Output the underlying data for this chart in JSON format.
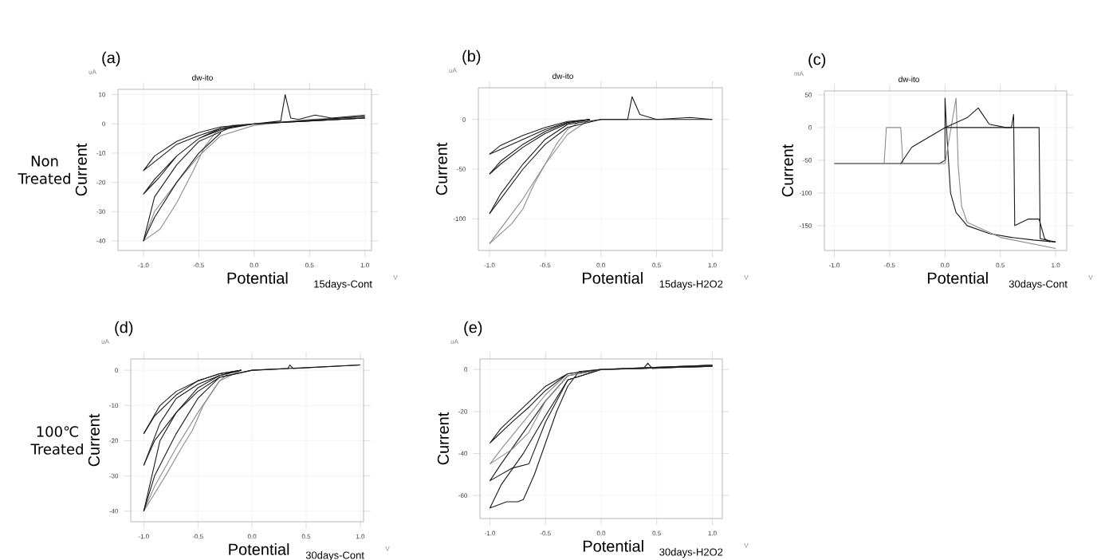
{
  "chart_data": [
    {
      "type": "line",
      "title": "(a)",
      "subtitle": "dw-ito",
      "xlabel": "Potential",
      "ylabel": "Current",
      "annotations": [
        "uA",
        "V",
        "15days-Cont",
        "Non Treated"
      ],
      "grid": true,
      "xlim": [
        -1.23,
        1.06
      ],
      "ylim": [
        -43.3,
        11.8
      ],
      "xticks": [
        {
          "value": -1,
          "label": "-1.0"
        },
        {
          "value": -0.5,
          "label": "-0.5"
        },
        {
          "value": 0,
          "label": "0.0"
        },
        {
          "value": 0.5,
          "label": "0.5"
        },
        {
          "value": 1,
          "label": "1.0"
        }
      ],
      "yticks": [
        10,
        0,
        -10,
        -20,
        -30,
        -40
      ],
      "series": [
        {
          "color": "#8c8c8c",
          "x": [
            1.0,
            0.5,
            0.0,
            -0.2,
            -0.35,
            -0.45,
            -0.55,
            -0.7,
            -0.85,
            -1.0,
            -0.9,
            -0.7,
            -0.5,
            -0.3,
            0.0,
            0.5,
            1.0
          ],
          "values": [
            2,
            1,
            0,
            -0.5,
            -3,
            -8,
            -16,
            -27,
            -36,
            -40,
            -30,
            -20,
            -11,
            -4,
            -0.5,
            1.5,
            2.5
          ]
        },
        {
          "color": "#1a1a1a",
          "x": [
            1.0,
            0.5,
            0.0,
            -0.3,
            -0.5,
            -0.7,
            -0.85,
            -1.0,
            -0.9,
            -0.7,
            -0.5,
            -0.3,
            0.0,
            0.24,
            0.28,
            0.33,
            0.4,
            0.55,
            0.7,
            1.0
          ],
          "values": [
            2,
            1,
            0,
            -1.5,
            -5,
            -11,
            -18,
            -24,
            -19,
            -11,
            -5,
            -2,
            0,
            1,
            10,
            2,
            1.5,
            3,
            2,
            3
          ]
        },
        {
          "color": "#1a1a1a",
          "x": [
            1.0,
            0.0,
            -0.3,
            -0.5,
            -0.7,
            -0.9,
            -1.0,
            -0.9,
            -0.7,
            -0.5,
            -0.3,
            0.0,
            1.0
          ],
          "values": [
            2,
            0,
            -1,
            -3,
            -6,
            -11,
            -16,
            -13,
            -7,
            -4,
            -1.5,
            0,
            2.5
          ]
        },
        {
          "color": "#1a1a1a",
          "x": [
            -0.2,
            -0.5,
            -0.7,
            -0.9,
            -1.0,
            -0.9,
            -0.7,
            -0.5,
            -0.3
          ],
          "values": [
            -1,
            -6,
            -14,
            -25,
            -40,
            -32,
            -20,
            -10,
            -3
          ]
        }
      ]
    },
    {
      "type": "line",
      "title": "(b)",
      "subtitle": "dw-ito",
      "xlabel": "Potential",
      "ylabel": "Current",
      "annotations": [
        "uA",
        "V",
        "15days-H2O2"
      ],
      "grid": true,
      "xlim": [
        -1.1,
        1.09
      ],
      "ylim": [
        -132,
        32
      ],
      "xticks": [
        {
          "value": -1,
          "label": "-1.0"
        },
        {
          "value": -0.5,
          "label": "-0.5"
        },
        {
          "value": 0,
          "label": "0.0"
        },
        {
          "value": 0.5,
          "label": "0.5"
        },
        {
          "value": 1,
          "label": "1.0"
        }
      ],
      "yticks": [
        0,
        -50,
        -100
      ],
      "series": [
        {
          "color": "#8c8c8c",
          "x": [
            -0.1,
            -0.2,
            -0.3,
            -0.4,
            -0.5,
            -0.6,
            -0.7,
            -0.8,
            -0.9,
            -1.0
          ],
          "values": [
            0,
            -3,
            -10,
            -25,
            -45,
            -65,
            -90,
            -105,
            -115,
            -125
          ]
        },
        {
          "color": "#8c8c8c",
          "x": [
            -1.0,
            -0.9,
            -0.7,
            -0.5,
            -0.3,
            -0.1
          ],
          "values": [
            -125,
            -110,
            -80,
            -45,
            -15,
            0
          ]
        },
        {
          "color": "#1a1a1a",
          "x": [
            1.0,
            0.8,
            0.5,
            0.0,
            -0.3,
            -0.5,
            -0.7,
            -0.9,
            -1.0
          ],
          "values": [
            0,
            2,
            0,
            0,
            -5,
            -20,
            -45,
            -75,
            -95
          ]
        },
        {
          "color": "#1a1a1a",
          "x": [
            -1.0,
            -0.9,
            -0.7,
            -0.5,
            -0.3,
            0.0,
            0.24,
            0.28,
            0.35,
            0.5,
            1.0
          ],
          "values": [
            -95,
            -80,
            -50,
            -25,
            -8,
            0,
            0,
            23,
            5,
            0,
            0
          ]
        },
        {
          "color": "#1a1a1a",
          "x": [
            -0.1,
            -0.3,
            -0.5,
            -0.7,
            -0.9,
            -1.0
          ],
          "values": [
            0,
            -3,
            -12,
            -25,
            -42,
            -55
          ]
        },
        {
          "color": "#1a1a1a",
          "x": [
            -1.0,
            -0.9,
            -0.7,
            -0.5,
            -0.3,
            -0.1
          ],
          "values": [
            -55,
            -45,
            -28,
            -14,
            -4,
            0
          ]
        },
        {
          "color": "#1a1a1a",
          "x": [
            -0.1,
            -0.3,
            -0.5,
            -0.7,
            -0.9,
            -1.0
          ],
          "values": [
            0,
            -2,
            -8,
            -16,
            -26,
            -35
          ]
        },
        {
          "color": "#1a1a1a",
          "x": [
            -1.0,
            -0.9,
            -0.7,
            -0.5,
            -0.3,
            -0.1
          ],
          "values": [
            -35,
            -30,
            -20,
            -10,
            -3,
            0
          ]
        }
      ]
    },
    {
      "type": "line",
      "title": "(c)",
      "subtitle": "dw-ito",
      "xlabel": "Potential",
      "ylabel": "Current",
      "annotations": [
        "mA",
        "V",
        "30days-Cont"
      ],
      "grid": true,
      "xlim": [
        -1.09,
        1.1
      ],
      "ylim": [
        -188,
        56
      ],
      "xticks": [
        {
          "value": -1,
          "label": "-1.0"
        },
        {
          "value": -0.5,
          "label": "-0.5"
        },
        {
          "value": 0,
          "label": "0.0"
        },
        {
          "value": 0.5,
          "label": "0.5"
        },
        {
          "value": 1,
          "label": "1.0"
        }
      ],
      "yticks": [
        50,
        0,
        -50,
        -100,
        -150
      ],
      "series": [
        {
          "color": "#1a1a1a",
          "x": [
            -1.0,
            -0.05,
            0.0,
            0.0,
            0.02,
            0.05,
            0.1,
            0.2,
            0.4,
            0.6,
            0.8,
            1.0
          ],
          "values": [
            -55,
            -55,
            -50,
            45,
            -20,
            -100,
            -130,
            -150,
            -162,
            -168,
            -172,
            -175
          ]
        },
        {
          "color": "#8c8c8c",
          "x": [
            -1.0,
            -0.55,
            -0.53,
            -0.4,
            -0.38,
            0.0,
            0.1,
            0.12,
            0.15,
            0.2,
            0.5,
            1.0
          ],
          "values": [
            -55,
            -55,
            0,
            0,
            -55,
            -55,
            45,
            -60,
            -120,
            -145,
            -168,
            -185
          ]
        },
        {
          "color": "#1a1a1a",
          "x": [
            -0.4,
            -0.3,
            -0.2,
            0.0,
            0.2,
            0.3,
            0.4,
            0.55,
            0.6,
            0.62,
            0.63,
            0.75,
            0.85,
            0.9,
            0.95
          ],
          "values": [
            -55,
            -30,
            -20,
            0,
            15,
            30,
            5,
            0,
            0,
            20,
            -150,
            -140,
            -140,
            -170,
            -175
          ]
        },
        {
          "color": "#1a1a1a",
          "x": [
            0.0,
            0.85,
            0.86,
            1.0
          ],
          "values": [
            0,
            0,
            -170,
            -175
          ]
        }
      ]
    },
    {
      "type": "line",
      "title": "(d)",
      "xlabel": "Potential",
      "ylabel": "Current",
      "annotations": [
        "uA",
        "V",
        "30days-Cont",
        "100℃ Treated"
      ],
      "grid": true,
      "xlim": [
        -1.12,
        1.03
      ],
      "ylim": [
        -43,
        3.2
      ],
      "xticks": [
        {
          "value": -1,
          "label": "-1.0"
        },
        {
          "value": -0.5,
          "label": "-0.5"
        },
        {
          "value": 0,
          "label": "0.0"
        },
        {
          "value": 0.5,
          "label": "0.5"
        },
        {
          "value": 1,
          "label": "1.0"
        }
      ],
      "yticks": [
        0,
        -10,
        -20,
        -30,
        -40
      ],
      "series": [
        {
          "color": "#8c8c8c",
          "x": [
            -0.2,
            -0.3,
            -0.45,
            -0.55,
            -0.65,
            -0.8,
            -1.0
          ],
          "values": [
            -0.5,
            -3,
            -10,
            -17,
            -22,
            -30,
            -40
          ]
        },
        {
          "color": "#8c8c8c",
          "x": [
            -1.0,
            -0.9,
            -0.7,
            -0.5,
            -0.3,
            -0.1
          ],
          "values": [
            -40,
            -33,
            -22,
            -12,
            -3,
            0
          ]
        },
        {
          "color": "#1a1a1a",
          "x": [
            1.0,
            0.38,
            0.35,
            0.33,
            0.0,
            -0.3,
            -0.5,
            -0.7,
            -0.85,
            -1.0
          ],
          "values": [
            1.5,
            0.5,
            1.5,
            0.5,
            0,
            -2,
            -6,
            -12,
            -20,
            -40
          ]
        },
        {
          "color": "#1a1a1a",
          "x": [
            -1.0,
            -0.9,
            -0.7,
            -0.5,
            -0.3,
            0.0,
            1.0
          ],
          "values": [
            -40,
            -30,
            -18,
            -8,
            -2,
            0,
            1.5
          ]
        },
        {
          "color": "#1a1a1a",
          "x": [
            -0.1,
            -0.3,
            -0.5,
            -0.7,
            -0.85,
            -1.0
          ],
          "values": [
            0,
            -1.5,
            -4,
            -8,
            -15,
            -27
          ]
        },
        {
          "color": "#1a1a1a",
          "x": [
            -1.0,
            -0.9,
            -0.7,
            -0.5,
            -0.3,
            -0.1
          ],
          "values": [
            -27,
            -20,
            -12,
            -5,
            -1.5,
            0
          ]
        },
        {
          "color": "#1a1a1a",
          "x": [
            -0.1,
            -0.3,
            -0.5,
            -0.7,
            -0.85,
            -1.0
          ],
          "values": [
            0,
            -1,
            -3,
            -6,
            -10,
            -18
          ]
        },
        {
          "color": "#1a1a1a",
          "x": [
            -1.0,
            -0.9,
            -0.7,
            -0.5,
            -0.3,
            -0.1
          ],
          "values": [
            -18,
            -13,
            -7,
            -3,
            -1,
            0
          ]
        }
      ]
    },
    {
      "type": "line",
      "title": "(e)",
      "xlabel": "Potential",
      "ylabel": "Current",
      "annotations": [
        "uA",
        "V",
        "30days-H2O2"
      ],
      "grid": true,
      "xlim": [
        -1.09,
        1.09
      ],
      "ylim": [
        -71,
        5
      ],
      "xticks": [
        {
          "value": -1,
          "label": "-1.0"
        },
        {
          "value": -0.5,
          "label": "-0.5"
        },
        {
          "value": 0,
          "label": "0.0"
        },
        {
          "value": 0.5,
          "label": "0.5"
        },
        {
          "value": 1,
          "label": "1.0"
        }
      ],
      "yticks": [
        0,
        -20,
        -40,
        -60
      ],
      "series": [
        {
          "color": "#1a1a1a",
          "x": [
            1.0,
            0.0,
            -0.2,
            -0.3,
            -0.4,
            -0.5,
            -0.6,
            -0.7,
            -0.75,
            -0.85,
            -0.95,
            -1.0,
            -0.9,
            -0.7,
            -0.5,
            -0.3,
            0.0,
            0.38,
            0.42,
            0.46,
            1.0
          ],
          "values": [
            1.5,
            0,
            -1,
            -8,
            -20,
            -35,
            -50,
            -62,
            -63,
            -63,
            -65,
            -66,
            -55,
            -40,
            -22,
            -5,
            0,
            0.5,
            3,
            0.5,
            2
          ]
        },
        {
          "color": "#1a1a1a",
          "x": [
            1.0,
            0.0,
            -0.3,
            -0.5,
            -0.65,
            -0.8,
            -1.0,
            -0.9,
            -0.7,
            -0.5,
            -0.3,
            0.0,
            1.0
          ],
          "values": [
            1.5,
            0,
            -5,
            -25,
            -45,
            -47,
            -53,
            -45,
            -30,
            -15,
            -3,
            0,
            2
          ]
        },
        {
          "color": "#8c8c8c",
          "x": [
            1.0,
            0.0,
            -0.3,
            -0.5,
            -0.65,
            -0.8,
            -1.0,
            -0.9,
            -0.7,
            -0.5,
            -0.3,
            0.0,
            1.0
          ],
          "values": [
            1.5,
            0,
            -3,
            -15,
            -30,
            -38,
            -45,
            -38,
            -25,
            -12,
            -2,
            0,
            2
          ]
        },
        {
          "color": "#1a1a1a",
          "x": [
            1.0,
            0.0,
            -0.3,
            -0.5,
            -0.65,
            -0.8,
            -1.0,
            -0.9,
            -0.7,
            -0.5,
            -0.3,
            0.0,
            1.0
          ],
          "values": [
            1.5,
            0,
            -2,
            -10,
            -18,
            -25,
            -35,
            -28,
            -18,
            -8,
            -2,
            0,
            2
          ]
        }
      ]
    }
  ]
}
